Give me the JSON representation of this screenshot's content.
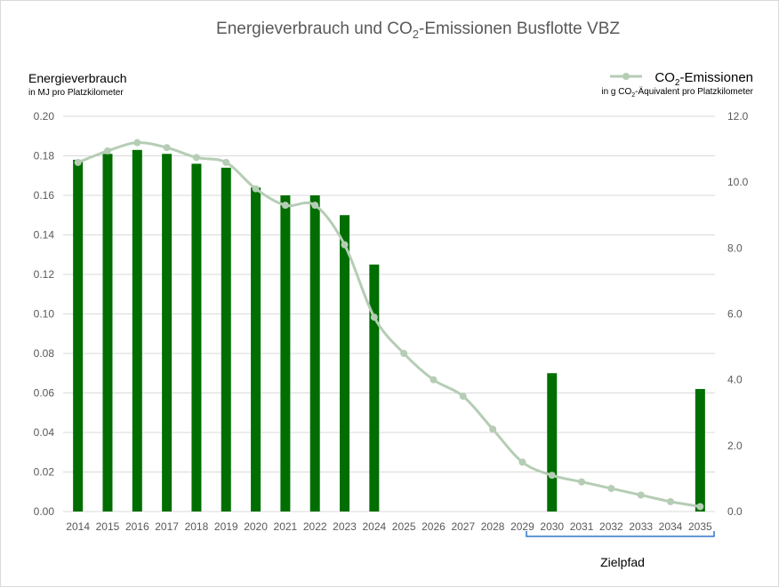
{
  "chart_data": {
    "type": "bar+line",
    "title": {
      "pre": "Energieverbrauch und CO",
      "sub": "2",
      "post": "-Emissionen Busflotte VBZ"
    },
    "left_axis": {
      "label": "Energieverbrauch",
      "sublabel": "in MJ pro Platzkilometer",
      "ylim": [
        0,
        0.2
      ],
      "ticks": [
        "0.00",
        "0.02",
        "0.04",
        "0.06",
        "0.08",
        "0.10",
        "0.12",
        "0.14",
        "0.16",
        "0.18",
        "0.20"
      ]
    },
    "right_axis": {
      "label": {
        "pre": "CO",
        "sub": "2",
        "post": "-Emissionen"
      },
      "sublabel": {
        "pre": "in g CO",
        "sub": "2",
        "post": "-Äquivalent  pro Platzkilometer"
      },
      "ylim": [
        0,
        12
      ],
      "ticks": [
        "0.0",
        "2.0",
        "4.0",
        "6.0",
        "8.0",
        "10.0",
        "12.0"
      ]
    },
    "categories": [
      "2014",
      "2015",
      "2016",
      "2017",
      "2018",
      "2019",
      "2020",
      "2021",
      "2022",
      "2023",
      "2024",
      "2025",
      "2026",
      "2027",
      "2028",
      "2029",
      "2030",
      "2031",
      "2032",
      "2033",
      "2034",
      "2035"
    ],
    "series": [
      {
        "type": "bar",
        "axis": "left",
        "color": "#006e00",
        "values": [
          0.178,
          0.181,
          0.183,
          0.181,
          0.176,
          0.174,
          0.164,
          0.16,
          0.16,
          0.15,
          0.125,
          null,
          null,
          null,
          null,
          null,
          0.07,
          null,
          null,
          null,
          null,
          0.062
        ]
      },
      {
        "name": "CO2-Emissionen",
        "type": "line",
        "axis": "right",
        "smooth": true,
        "color": "#b5cdb5",
        "values": [
          10.6,
          10.95,
          11.2,
          11.05,
          10.75,
          10.6,
          9.8,
          9.3,
          9.3,
          8.1,
          5.9,
          4.8,
          4.0,
          3.5,
          2.5,
          1.5,
          1.1,
          0.9,
          0.7,
          0.5,
          0.3,
          0.15
        ]
      }
    ],
    "grid": true,
    "legend": "top-right",
    "annotation": {
      "text": "Zielpfad",
      "from": "2030",
      "to": "2035",
      "color": "#2e75c8"
    }
  }
}
